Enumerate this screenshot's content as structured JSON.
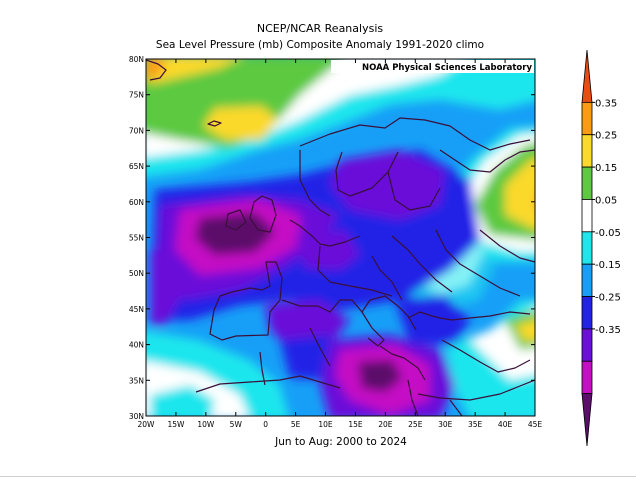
{
  "title": "NCEP/NCAR Reanalysis",
  "subtitle": "Sea Level Pressure (mb) Composite Anomaly 1991-2020 climo",
  "credit": "NOAA Physical Sciences Laboratory",
  "footer": "Jun to Aug: 2000 to 2024",
  "lat_labels": [
    "80N",
    "75N",
    "70N",
    "65N",
    "60N",
    "55N",
    "50N",
    "45N",
    "40N",
    "35N",
    "30N"
  ],
  "lon_labels": [
    "20W",
    "15W",
    "10W",
    "5W",
    "0",
    "5E",
    "10E",
    "15E",
    "20E",
    "25E",
    "30E",
    "35E",
    "40E",
    "45E"
  ],
  "colorbar": {
    "labels": [
      "0.35",
      "0.25",
      "0.15",
      "0.05",
      "-0.05",
      "-0.15",
      "-0.25",
      "-0.35"
    ],
    "colors": [
      "#e84d12",
      "#fb9b12",
      "#fbd92a",
      "#5cc941",
      "#ffffff",
      "#1fe6ed",
      "#179ff7",
      "#2323e6",
      "#6b0fd9",
      "#c40fc4",
      "#5b0f6b"
    ]
  }
}
